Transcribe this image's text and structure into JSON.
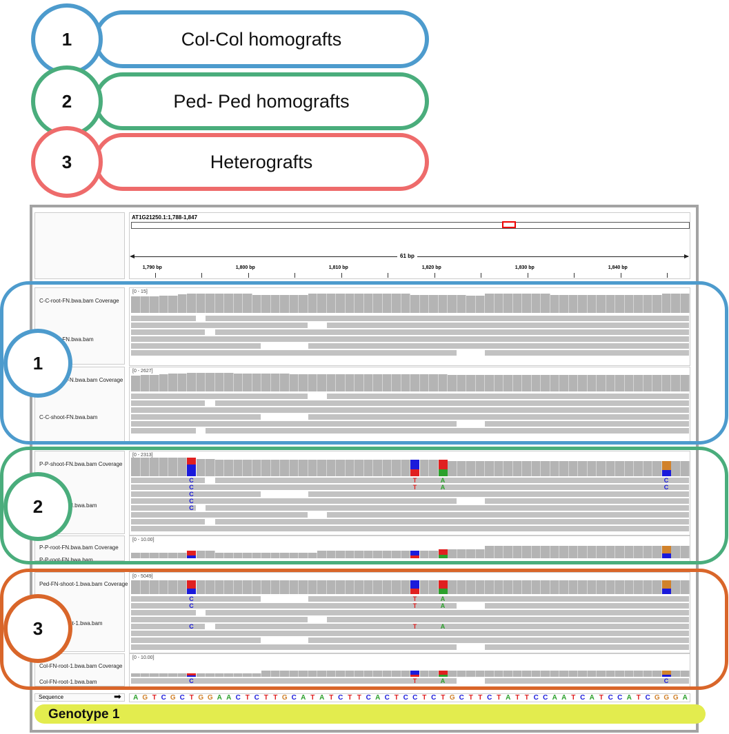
{
  "legend": [
    {
      "number": "1",
      "label": "Col-Col homografts",
      "color": "#4d9bcd"
    },
    {
      "number": "2",
      "label": "Ped- Ped homografts",
      "color": "#4aad7c"
    },
    {
      "number": "3",
      "label": "Heterografts",
      "color": "#ee6b6b"
    }
  ],
  "overlay_groups": [
    {
      "number": "1",
      "color": "#4d9bcd"
    },
    {
      "number": "2",
      "color": "#4aad7c"
    },
    {
      "number": "3",
      "color": "#d9662a"
    }
  ],
  "igv": {
    "locus": "AT1G21250.1:1,788-1,847",
    "span_label": "61 bp",
    "ruler_ticks": [
      "1,790 bp",
      "1,800 bp",
      "1,810 bp",
      "1,820 bp",
      "1,830 bp",
      "1,840 bp"
    ],
    "tracks": [
      {
        "coverage_label": "C-C-root-FN.bwa.bam Coverage",
        "range": "[0 - 15]",
        "reads_label": "C-C-root-FN.bwa.bam"
      },
      {
        "coverage_label": "C-C-shoot-FN.bwa.bam Coverage",
        "range": "[0 - 2627]",
        "reads_label": "C-C-shoot-FN.bwa.bam"
      },
      {
        "coverage_label": "P-P-shoot-FN.bwa.bam Coverage",
        "range": "[0 - 2313]",
        "reads_label": "P-P-shoot-FN.bwa.bam"
      },
      {
        "coverage_label": "P-P-root-FN.bwa.bam Coverage",
        "range": "[0 - 10.00]",
        "reads_label": "P-P-root-FN.bwa.bam"
      },
      {
        "coverage_label": "Ped-FN-shoot-1.bwa.bam Coverage",
        "range": "[0 - 5049]",
        "reads_label": "Ped-FN-shoot-1.bwa.bam"
      },
      {
        "coverage_label": "Col-FN-root-1.bwa.bam Coverage",
        "range": "[0 - 10.00]",
        "reads_label": "Col-FN-root-1.bwa.bam"
      }
    ],
    "sequence_label": "Sequence",
    "sequence": "AGTCGCTGGAACTCTTGCATATCTTCACTCCTCTGCTTCTATTCCAATCATCCATCGGGAT",
    "base_colors": {
      "A": "#2ca02c",
      "C": "#1a1adb",
      "G": "#d1822b",
      "T": "#e02020"
    },
    "mismatches": [
      {
        "pos": 1794,
        "alt": "C"
      },
      {
        "pos": 1818,
        "alt": "T"
      },
      {
        "pos": 1821,
        "alt": "A"
      },
      {
        "pos": 1845,
        "alt": "C"
      }
    ]
  },
  "genotype_label": "Genotype 1"
}
